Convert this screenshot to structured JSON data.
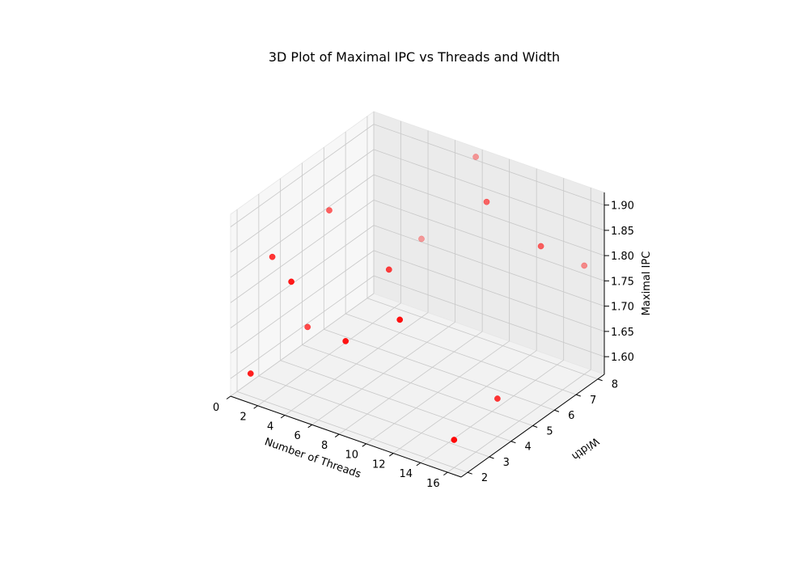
{
  "chart_data": {
    "type": "scatter",
    "projection": "3d",
    "title": "3D Plot of Maximal IPC vs Threads and Width",
    "xlabel": "Number of Threads",
    "ylabel": "Width",
    "zlabel": "Maximal IPC",
    "xlim": [
      0,
      17
    ],
    "ylim": [
      1.7,
      8.3
    ],
    "zlim": [
      1.565,
      1.925
    ],
    "x_ticks": [
      "0",
      "2",
      "4",
      "6",
      "8",
      "10",
      "12",
      "14",
      "16"
    ],
    "y_ticks": [
      "2",
      "3",
      "4",
      "5",
      "6",
      "7",
      "8"
    ],
    "z_ticks": [
      "1.60",
      "1.65",
      "1.70",
      "1.75",
      "1.80",
      "1.85",
      "1.90"
    ],
    "grid": true,
    "marker_color": "#ff0000",
    "pane_colors": [
      "#f2f2f2",
      "#ebebeb",
      "#f7f7f7"
    ],
    "points": [
      {
        "x": 1,
        "y": 2,
        "z": 1.61
      },
      {
        "x": 2,
        "y": 4,
        "z": 1.65
      },
      {
        "x": 4,
        "y": 8,
        "z": 1.72
      },
      {
        "x": 1,
        "y": 3,
        "z": 1.81
      },
      {
        "x": 2,
        "y": 5,
        "z": 1.85
      },
      {
        "x": 4,
        "y": 2,
        "z": 1.82
      },
      {
        "x": 8,
        "y": 2,
        "z": 1.74
      },
      {
        "x": 8,
        "y": 4,
        "z": 1.82
      },
      {
        "x": 8,
        "y": 8,
        "z": 1.92
      },
      {
        "x": 12,
        "y": 6,
        "z": 1.93
      },
      {
        "x": 16,
        "y": 6,
        "z": 1.88
      },
      {
        "x": 16,
        "y": 2,
        "z": 1.62
      },
      {
        "x": 16,
        "y": 4,
        "z": 1.64
      },
      {
        "x": 16,
        "y": 8,
        "z": 1.78
      },
      {
        "x": 12,
        "y": 2,
        "z": 1.82
      }
    ]
  }
}
